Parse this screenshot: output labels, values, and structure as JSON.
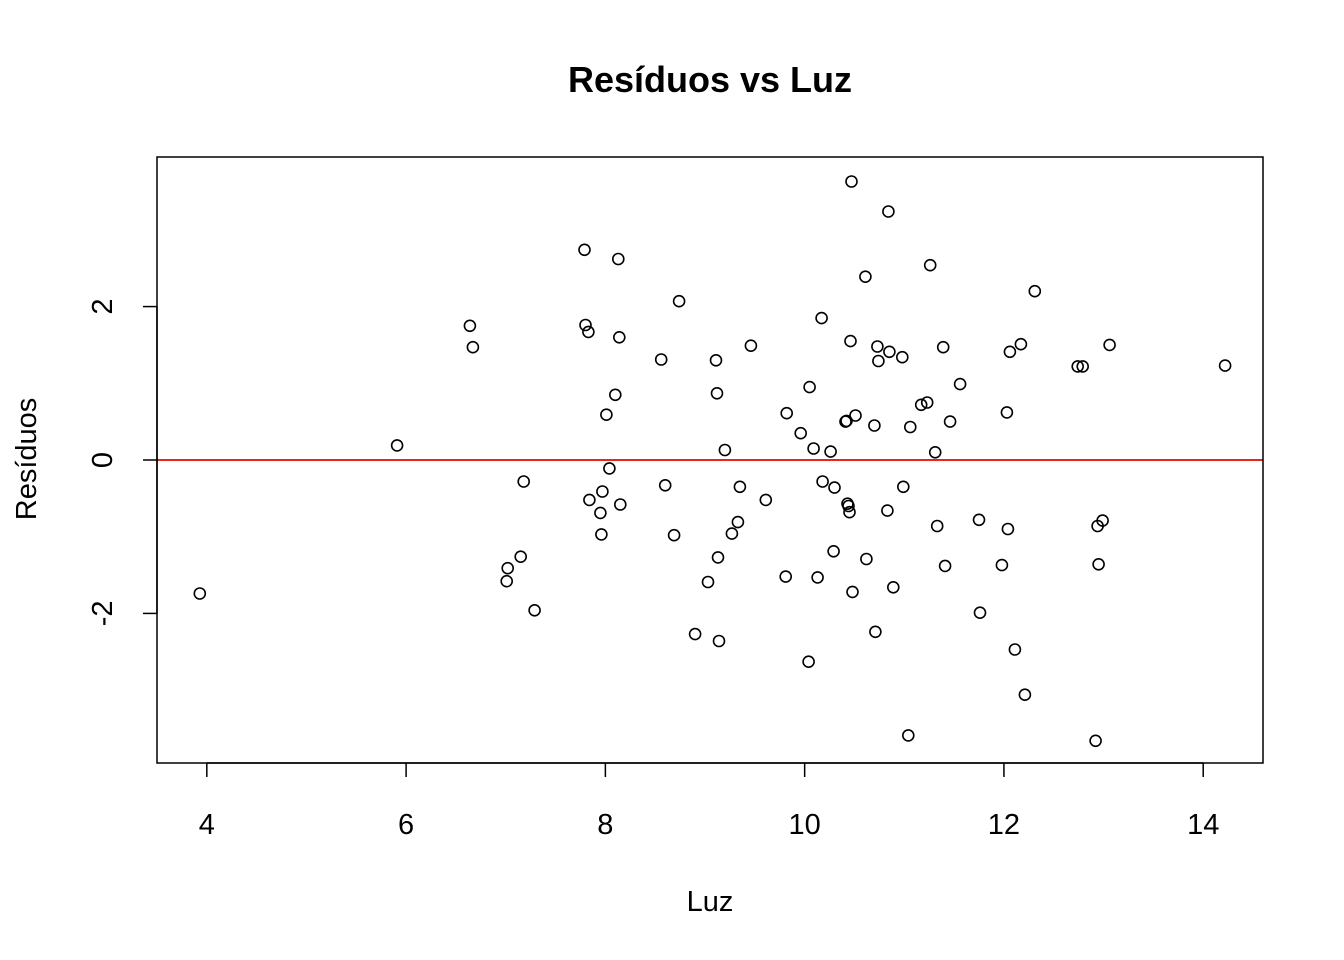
{
  "chart_data": {
    "type": "scatter",
    "title": "Resíduos vs Luz",
    "xlabel": "Luz",
    "ylabel": "Resíduos",
    "xlim": [
      3.5,
      14.6
    ],
    "ylim": [
      -3.95,
      3.95
    ],
    "xticks": [
      4,
      6,
      8,
      10,
      12,
      14
    ],
    "yticks": [
      -2,
      0,
      2
    ],
    "xtick_labels": [
      "4",
      "6",
      "8",
      "10",
      "12",
      "14"
    ],
    "ytick_labels": [
      "-2",
      "0",
      "2"
    ],
    "grid": false,
    "reference_line": {
      "y": 0,
      "color": "#e8261b"
    },
    "marker_color": "#000000",
    "points": [
      [
        3.93,
        -1.74
      ],
      [
        5.91,
        0.19
      ],
      [
        6.64,
        1.75
      ],
      [
        6.67,
        1.47
      ],
      [
        7.02,
        -1.41
      ],
      [
        7.01,
        -1.58
      ],
      [
        7.15,
        -1.26
      ],
      [
        7.18,
        -0.28
      ],
      [
        7.29,
        -1.96
      ],
      [
        7.79,
        2.74
      ],
      [
        7.8,
        1.76
      ],
      [
        7.83,
        1.67
      ],
      [
        7.84,
        -0.52
      ],
      [
        7.95,
        -0.69
      ],
      [
        7.97,
        -0.41
      ],
      [
        7.96,
        -0.97
      ],
      [
        8.01,
        0.59
      ],
      [
        8.04,
        -0.11
      ],
      [
        8.1,
        0.85
      ],
      [
        8.13,
        2.62
      ],
      [
        8.14,
        1.6
      ],
      [
        8.15,
        -0.58
      ],
      [
        8.56,
        1.31
      ],
      [
        8.6,
        -0.33
      ],
      [
        8.69,
        -0.98
      ],
      [
        8.74,
        2.07
      ],
      [
        8.9,
        -2.27
      ],
      [
        9.03,
        -1.59
      ],
      [
        9.11,
        1.3
      ],
      [
        9.12,
        0.87
      ],
      [
        9.13,
        -1.27
      ],
      [
        9.14,
        -2.36
      ],
      [
        9.2,
        0.13
      ],
      [
        9.27,
        -0.96
      ],
      [
        9.33,
        -0.81
      ],
      [
        9.35,
        -0.35
      ],
      [
        9.46,
        1.49
      ],
      [
        9.61,
        -0.52
      ],
      [
        9.81,
        -1.52
      ],
      [
        9.82,
        0.61
      ],
      [
        9.96,
        0.35
      ],
      [
        10.05,
        0.95
      ],
      [
        10.04,
        -2.63
      ],
      [
        10.09,
        0.15
      ],
      [
        10.13,
        -1.53
      ],
      [
        10.17,
        1.85
      ],
      [
        10.18,
        -0.28
      ],
      [
        10.26,
        0.11
      ],
      [
        10.29,
        -1.19
      ],
      [
        10.3,
        -0.36
      ],
      [
        10.41,
        0.5
      ],
      [
        10.42,
        0.51
      ],
      [
        10.43,
        -0.57
      ],
      [
        10.44,
        -0.6
      ],
      [
        10.45,
        -0.68
      ],
      [
        10.46,
        1.55
      ],
      [
        10.47,
        3.63
      ],
      [
        10.48,
        -1.72
      ],
      [
        10.51,
        0.58
      ],
      [
        10.61,
        2.39
      ],
      [
        10.62,
        -1.29
      ],
      [
        10.7,
        0.45
      ],
      [
        10.71,
        -2.24
      ],
      [
        10.73,
        1.48
      ],
      [
        10.74,
        1.29
      ],
      [
        10.83,
        -0.66
      ],
      [
        10.84,
        3.24
      ],
      [
        10.85,
        1.41
      ],
      [
        10.89,
        -1.66
      ],
      [
        10.98,
        1.34
      ],
      [
        10.99,
        -0.35
      ],
      [
        11.04,
        -3.59
      ],
      [
        11.06,
        0.43
      ],
      [
        11.17,
        0.72
      ],
      [
        11.23,
        0.75
      ],
      [
        11.26,
        2.54
      ],
      [
        11.31,
        0.1
      ],
      [
        11.33,
        -0.86
      ],
      [
        11.39,
        1.47
      ],
      [
        11.41,
        -1.38
      ],
      [
        11.46,
        0.5
      ],
      [
        11.56,
        0.99
      ],
      [
        11.75,
        -0.78
      ],
      [
        11.76,
        -1.99
      ],
      [
        11.98,
        -1.37
      ],
      [
        12.03,
        0.62
      ],
      [
        12.04,
        -0.9
      ],
      [
        12.06,
        1.41
      ],
      [
        12.11,
        -2.47
      ],
      [
        12.17,
        1.51
      ],
      [
        12.21,
        -3.06
      ],
      [
        12.31,
        2.2
      ],
      [
        12.74,
        1.22
      ],
      [
        12.79,
        1.22
      ],
      [
        12.92,
        -3.66
      ],
      [
        12.94,
        -0.86
      ],
      [
        12.95,
        -1.36
      ],
      [
        12.99,
        -0.79
      ],
      [
        13.06,
        1.5
      ],
      [
        14.22,
        1.23
      ]
    ]
  }
}
